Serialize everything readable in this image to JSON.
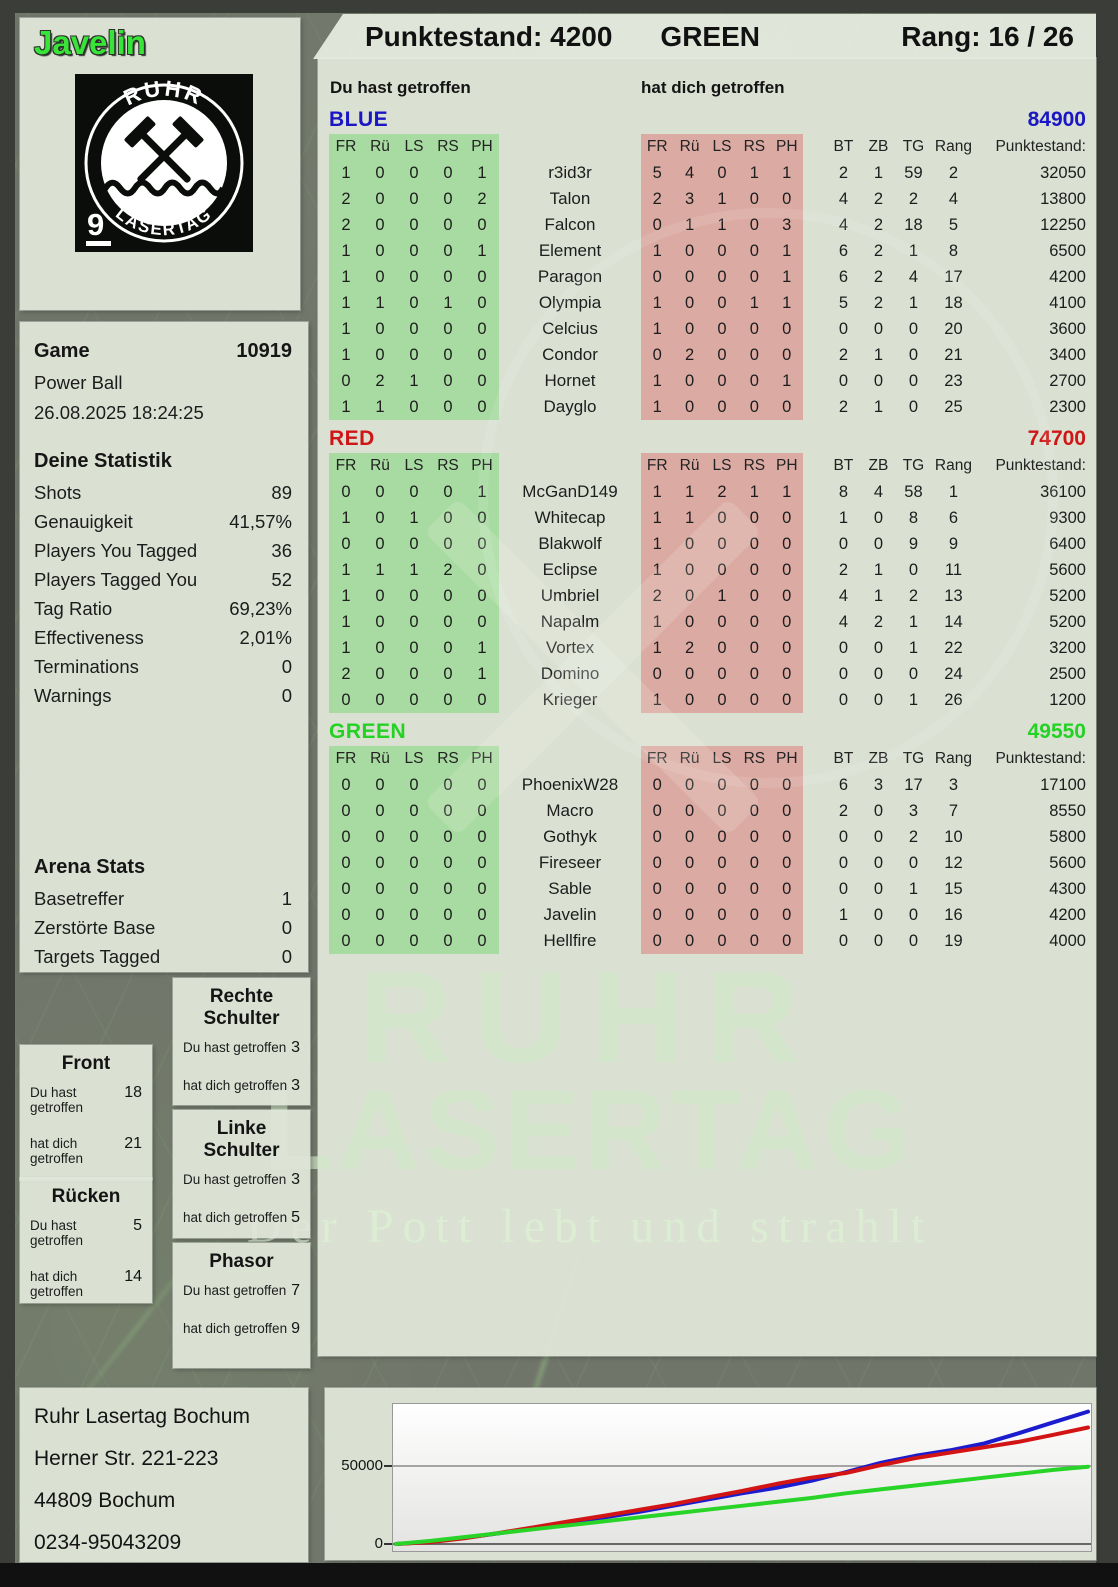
{
  "header": {
    "player": "Javelin",
    "points_label": "Punktestand: 4200",
    "team": "GREEN",
    "rank_label": "Rang: 16 / 26"
  },
  "logo": {
    "arc_top": "RUHR",
    "arc_bottom": "LASERTAG",
    "badge": "9"
  },
  "game_info": {
    "label": "Game",
    "number": "10919",
    "mode": "Power Ball",
    "datetime": "26.08.2025 18:24:25"
  },
  "your_stats": {
    "title": "Deine Statistik",
    "rows": [
      {
        "label": "Shots",
        "value": "89"
      },
      {
        "label": "Genauigkeit",
        "value": "41,57%"
      },
      {
        "label": "Players You Tagged",
        "value": "36"
      },
      {
        "label": "Players Tagged You",
        "value": "52"
      },
      {
        "label": "Tag Ratio",
        "value": "69,23%"
      },
      {
        "label": "Effectiveness",
        "value": "2,01%"
      },
      {
        "label": "Terminations",
        "value": "0"
      },
      {
        "label": "Warnings",
        "value": "0"
      }
    ]
  },
  "arena_stats": {
    "title": "Arena Stats",
    "rows": [
      {
        "label": "Basetreffer",
        "value": "1"
      },
      {
        "label": "Zerstörte Base",
        "value": "0"
      },
      {
        "label": "Targets Tagged",
        "value": "0"
      }
    ]
  },
  "zones": {
    "you_label": "Du hast getroffen",
    "them_label": "hat dich getroffen",
    "rechte_schulter": {
      "title": "Rechte Schulter",
      "you": "3",
      "them": "3"
    },
    "front": {
      "title": "Front",
      "you": "18",
      "them": "21"
    },
    "linke_schulter": {
      "title": "Linke Schulter",
      "you": "3",
      "them": "5"
    },
    "ruecken": {
      "title": "Rücken",
      "you": "5",
      "them": "14"
    },
    "phasor": {
      "title": "Phasor",
      "you": "7",
      "them": "9"
    }
  },
  "tables": {
    "you_header": "Du hast getroffen",
    "them_header": "hat dich getroffen",
    "hit_cols": [
      "FR",
      "Rü",
      "LS",
      "RS",
      "PH"
    ],
    "stat_cols": [
      "BT",
      "ZB",
      "TG",
      "Rang",
      "Punktestand:"
    ],
    "teams": [
      {
        "name": "BLUE",
        "color": "#1a16c4",
        "total": "84900",
        "players": [
          {
            "name": "r3id3r",
            "you": [
              1,
              0,
              0,
              0,
              1
            ],
            "them": [
              5,
              4,
              0,
              1,
              1
            ],
            "bt": 2,
            "zb": 1,
            "tg": 59,
            "rang": 2,
            "points": "32050"
          },
          {
            "name": "Talon",
            "you": [
              2,
              0,
              0,
              0,
              2
            ],
            "them": [
              2,
              3,
              1,
              0,
              0
            ],
            "bt": 4,
            "zb": 2,
            "tg": 2,
            "rang": 4,
            "points": "13800"
          },
          {
            "name": "Falcon",
            "you": [
              2,
              0,
              0,
              0,
              0
            ],
            "them": [
              0,
              1,
              1,
              0,
              3
            ],
            "bt": 4,
            "zb": 2,
            "tg": 18,
            "rang": 5,
            "points": "12250"
          },
          {
            "name": "Element",
            "you": [
              1,
              0,
              0,
              0,
              1
            ],
            "them": [
              1,
              0,
              0,
              0,
              1
            ],
            "bt": 6,
            "zb": 2,
            "tg": 1,
            "rang": 8,
            "points": "6500"
          },
          {
            "name": "Paragon",
            "you": [
              1,
              0,
              0,
              0,
              0
            ],
            "them": [
              0,
              0,
              0,
              0,
              1
            ],
            "bt": 6,
            "zb": 2,
            "tg": 4,
            "rang": 17,
            "points": "4200"
          },
          {
            "name": "Olympia",
            "you": [
              1,
              1,
              0,
              1,
              0
            ],
            "them": [
              1,
              0,
              0,
              1,
              1
            ],
            "bt": 5,
            "zb": 2,
            "tg": 1,
            "rang": 18,
            "points": "4100"
          },
          {
            "name": "Celcius",
            "you": [
              1,
              0,
              0,
              0,
              0
            ],
            "them": [
              1,
              0,
              0,
              0,
              0
            ],
            "bt": 0,
            "zb": 0,
            "tg": 0,
            "rang": 20,
            "points": "3600"
          },
          {
            "name": "Condor",
            "you": [
              1,
              0,
              0,
              0,
              0
            ],
            "them": [
              0,
              2,
              0,
              0,
              0
            ],
            "bt": 2,
            "zb": 1,
            "tg": 0,
            "rang": 21,
            "points": "3400"
          },
          {
            "name": "Hornet",
            "you": [
              0,
              2,
              1,
              0,
              0
            ],
            "them": [
              1,
              0,
              0,
              0,
              1
            ],
            "bt": 0,
            "zb": 0,
            "tg": 0,
            "rang": 23,
            "points": "2700"
          },
          {
            "name": "Dayglo",
            "you": [
              1,
              1,
              0,
              0,
              0
            ],
            "them": [
              1,
              0,
              0,
              0,
              0
            ],
            "bt": 2,
            "zb": 1,
            "tg": 0,
            "rang": 25,
            "points": "2300"
          }
        ]
      },
      {
        "name": "RED",
        "color": "#cf1616",
        "total": "74700",
        "players": [
          {
            "name": "McGanD149",
            "you": [
              0,
              0,
              0,
              0,
              1
            ],
            "them": [
              1,
              1,
              2,
              1,
              1
            ],
            "bt": 8,
            "zb": 4,
            "tg": 58,
            "rang": 1,
            "points": "36100"
          },
          {
            "name": "Whitecap",
            "you": [
              1,
              0,
              1,
              0,
              0
            ],
            "them": [
              1,
              1,
              0,
              0,
              0
            ],
            "bt": 1,
            "zb": 0,
            "tg": 8,
            "rang": 6,
            "points": "9300"
          },
          {
            "name": "Blakwolf",
            "you": [
              0,
              0,
              0,
              0,
              0
            ],
            "them": [
              1,
              0,
              0,
              0,
              0
            ],
            "bt": 0,
            "zb": 0,
            "tg": 9,
            "rang": 9,
            "points": "6400"
          },
          {
            "name": "Eclipse",
            "you": [
              1,
              1,
              1,
              2,
              0
            ],
            "them": [
              1,
              0,
              0,
              0,
              0
            ],
            "bt": 2,
            "zb": 1,
            "tg": 0,
            "rang": 11,
            "points": "5600"
          },
          {
            "name": "Umbriel",
            "you": [
              1,
              0,
              0,
              0,
              0
            ],
            "them": [
              2,
              0,
              1,
              0,
              0
            ],
            "bt": 4,
            "zb": 1,
            "tg": 2,
            "rang": 13,
            "points": "5200"
          },
          {
            "name": "Napalm",
            "you": [
              1,
              0,
              0,
              0,
              0
            ],
            "them": [
              1,
              0,
              0,
              0,
              0
            ],
            "bt": 4,
            "zb": 2,
            "tg": 1,
            "rang": 14,
            "points": "5200"
          },
          {
            "name": "Vortex",
            "you": [
              1,
              0,
              0,
              0,
              1
            ],
            "them": [
              1,
              2,
              0,
              0,
              0
            ],
            "bt": 0,
            "zb": 0,
            "tg": 1,
            "rang": 22,
            "points": "3200"
          },
          {
            "name": "Domino",
            "you": [
              2,
              0,
              0,
              0,
              1
            ],
            "them": [
              0,
              0,
              0,
              0,
              0
            ],
            "bt": 0,
            "zb": 0,
            "tg": 0,
            "rang": 24,
            "points": "2500"
          },
          {
            "name": "Krieger",
            "you": [
              0,
              0,
              0,
              0,
              0
            ],
            "them": [
              1,
              0,
              0,
              0,
              0
            ],
            "bt": 0,
            "zb": 0,
            "tg": 1,
            "rang": 26,
            "points": "1200"
          }
        ]
      },
      {
        "name": "GREEN",
        "color": "#25d125",
        "total": "49550",
        "players": [
          {
            "name": "PhoenixW28",
            "you": [
              0,
              0,
              0,
              0,
              0
            ],
            "them": [
              0,
              0,
              0,
              0,
              0
            ],
            "bt": 6,
            "zb": 3,
            "tg": 17,
            "rang": 3,
            "points": "17100"
          },
          {
            "name": "Macro",
            "you": [
              0,
              0,
              0,
              0,
              0
            ],
            "them": [
              0,
              0,
              0,
              0,
              0
            ],
            "bt": 2,
            "zb": 0,
            "tg": 3,
            "rang": 7,
            "points": "8550"
          },
          {
            "name": "Gothyk",
            "you": [
              0,
              0,
              0,
              0,
              0
            ],
            "them": [
              0,
              0,
              0,
              0,
              0
            ],
            "bt": 0,
            "zb": 0,
            "tg": 2,
            "rang": 10,
            "points": "5800"
          },
          {
            "name": "Fireseer",
            "you": [
              0,
              0,
              0,
              0,
              0
            ],
            "them": [
              0,
              0,
              0,
              0,
              0
            ],
            "bt": 0,
            "zb": 0,
            "tg": 0,
            "rang": 12,
            "points": "5600"
          },
          {
            "name": "Sable",
            "you": [
              0,
              0,
              0,
              0,
              0
            ],
            "them": [
              0,
              0,
              0,
              0,
              0
            ],
            "bt": 0,
            "zb": 0,
            "tg": 1,
            "rang": 15,
            "points": "4300"
          },
          {
            "name": "Javelin",
            "you": [
              0,
              0,
              0,
              0,
              0
            ],
            "them": [
              0,
              0,
              0,
              0,
              0
            ],
            "bt": 1,
            "zb": 0,
            "tg": 0,
            "rang": 16,
            "points": "4200"
          },
          {
            "name": "Hellfire",
            "you": [
              0,
              0,
              0,
              0,
              0
            ],
            "them": [
              0,
              0,
              0,
              0,
              0
            ],
            "bt": 0,
            "zb": 0,
            "tg": 0,
            "rang": 19,
            "points": "4000"
          }
        ]
      }
    ]
  },
  "watermark": {
    "line1": "RUHR",
    "line2": "LASERTAG",
    "tagline": "Der Pott lebt und strahlt"
  },
  "address": {
    "lines": [
      "Ruhr Lasertag Bochum",
      "Herner Str. 221-223",
      "44809 Bochum",
      "0234-95043209"
    ]
  },
  "chart_data": {
    "type": "line",
    "title": "",
    "xlabel": "",
    "ylabel": "",
    "ylim": [
      0,
      88000
    ],
    "grid": "horizontal line at 50000 only",
    "legend_position": "none",
    "x_axis_labels_visible": false,
    "yticks": [
      {
        "value": 50000,
        "label": "50000"
      },
      {
        "value": 0,
        "label": "0"
      }
    ],
    "series": [
      {
        "name": "BLUE",
        "color": "#1c1ccf",
        "final": 84900,
        "values": [
          0,
          1500,
          4000,
          7000,
          10000,
          13500,
          17000,
          20500,
          24500,
          28500,
          32500,
          36000,
          40500,
          46000,
          52000,
          56500,
          60000,
          64500,
          71000,
          78000,
          84900
        ]
      },
      {
        "name": "RED",
        "color": "#d31414",
        "final": 74700,
        "values": [
          0,
          1200,
          3800,
          7200,
          10800,
          14500,
          18000,
          21800,
          25500,
          29800,
          34000,
          38500,
          42500,
          45500,
          50500,
          55000,
          58500,
          62000,
          65500,
          70000,
          74700
        ]
      },
      {
        "name": "GREEN",
        "color": "#28d428",
        "final": 49550,
        "values": [
          0,
          2000,
          4500,
          7000,
          9500,
          12000,
          14500,
          17000,
          19500,
          22000,
          24500,
          27000,
          29500,
          32500,
          35000,
          37500,
          40000,
          42500,
          45000,
          47500,
          49550
        ]
      }
    ]
  }
}
